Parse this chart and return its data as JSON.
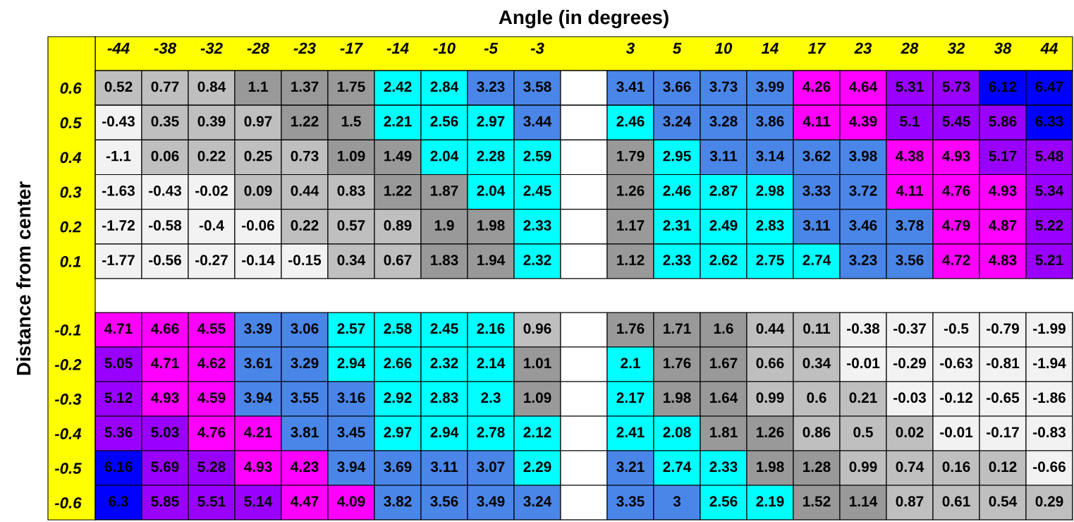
{
  "chart_data": [
    {
      "type": "heatmap",
      "xlabel": "Angle (in degrees)",
      "ylabel": "Distance from center",
      "data_labels": true,
      "categories": [
        "-44",
        "-38",
        "-32",
        "-28",
        "-23",
        "-17",
        "-14",
        "-10",
        "-5",
        "-3",
        null,
        "3",
        "5",
        "10",
        "14",
        "17",
        "23",
        "28",
        "32",
        "38",
        "44"
      ],
      "y_categories": [
        "0.6",
        "0.5",
        "0.4",
        "0.3",
        "0.2",
        "0.1"
      ],
      "cells": [
        [
          0.52,
          0.77,
          0.84,
          1.1,
          1.37,
          1.75,
          2.42,
          2.84,
          3.23,
          3.58,
          null,
          3.41,
          3.66,
          3.73,
          3.99,
          4.26,
          4.64,
          5.31,
          5.73,
          6.12,
          6.47
        ],
        [
          -0.43,
          0.35,
          0.39,
          0.97,
          1.22,
          1.5,
          2.21,
          2.56,
          2.97,
          3.44,
          null,
          2.46,
          3.24,
          3.28,
          3.86,
          4.11,
          4.39,
          5.1,
          5.45,
          5.86,
          6.33
        ],
        [
          -1.1,
          0.06,
          0.22,
          0.25,
          0.73,
          1.09,
          1.49,
          2.04,
          2.28,
          2.59,
          null,
          1.79,
          2.95,
          3.11,
          3.14,
          3.62,
          3.98,
          4.38,
          4.93,
          5.17,
          5.48
        ],
        [
          -1.63,
          -0.43,
          -0.02,
          0.09,
          0.44,
          0.83,
          1.22,
          1.87,
          2.04,
          2.45,
          null,
          1.26,
          2.46,
          2.87,
          2.98,
          3.33,
          3.72,
          4.11,
          4.76,
          4.93,
          5.34
        ],
        [
          -1.72,
          -0.58,
          -0.4,
          -0.06,
          0.22,
          0.57,
          0.89,
          1.9,
          1.98,
          2.33,
          null,
          1.17,
          2.31,
          2.49,
          2.83,
          3.11,
          3.46,
          3.78,
          4.79,
          4.87,
          5.22
        ],
        [
          -1.77,
          -0.56,
          -0.27,
          -0.14,
          -0.15,
          0.34,
          0.67,
          1.83,
          1.94,
          2.32,
          null,
          1.12,
          2.33,
          2.62,
          2.75,
          2.74,
          3.23,
          3.56,
          4.72,
          4.83,
          5.21
        ]
      ]
    },
    {
      "type": "heatmap",
      "data_labels": true,
      "tick_labels": "y",
      "categories": [
        null,
        null,
        null,
        null,
        null,
        null,
        null,
        null,
        null,
        null,
        null,
        null,
        null,
        null,
        null,
        null,
        null,
        null,
        null,
        null,
        null
      ],
      "y_categories": [
        "-0.1",
        "-0.2",
        "-0.3",
        "-0.4",
        "-0.5",
        "-0.6"
      ],
      "cells": [
        [
          4.71,
          4.66,
          4.55,
          3.39,
          3.06,
          2.57,
          2.58,
          2.45,
          2.16,
          0.96,
          null,
          1.76,
          1.71,
          1.6,
          0.44,
          0.11,
          -0.38,
          -0.37,
          -0.5,
          -0.79,
          -1.99
        ],
        [
          5.05,
          4.71,
          4.62,
          3.61,
          3.29,
          2.94,
          2.66,
          2.32,
          2.14,
          1.01,
          null,
          2.1,
          1.76,
          1.67,
          0.66,
          0.34,
          -0.01,
          -0.29,
          -0.63,
          -0.81,
          -1.94
        ],
        [
          5.12,
          4.93,
          4.59,
          3.94,
          3.55,
          3.16,
          2.92,
          2.83,
          2.3,
          1.09,
          null,
          2.17,
          1.98,
          1.64,
          0.99,
          0.6,
          0.21,
          -0.03,
          -0.12,
          -0.65,
          -1.86
        ],
        [
          5.36,
          5.03,
          4.76,
          4.21,
          3.81,
          3.45,
          2.97,
          2.94,
          2.78,
          2.12,
          null,
          2.41,
          2.08,
          1.81,
          1.26,
          0.86,
          0.5,
          0.02,
          -0.01,
          -0.17,
          -0.83
        ],
        [
          6.16,
          5.69,
          5.28,
          4.93,
          4.23,
          3.94,
          3.69,
          3.11,
          3.07,
          2.29,
          null,
          3.21,
          2.74,
          2.33,
          1.98,
          1.28,
          0.99,
          0.74,
          0.16,
          0.12,
          -0.66
        ],
        [
          6.3,
          5.85,
          5.51,
          5.14,
          4.47,
          4.09,
          3.82,
          3.56,
          3.49,
          3.24,
          null,
          3.35,
          3,
          2.56,
          2.19,
          1.52,
          1.14,
          0.87,
          0.61,
          0.54,
          0.29
        ]
      ]
    }
  ]
}
